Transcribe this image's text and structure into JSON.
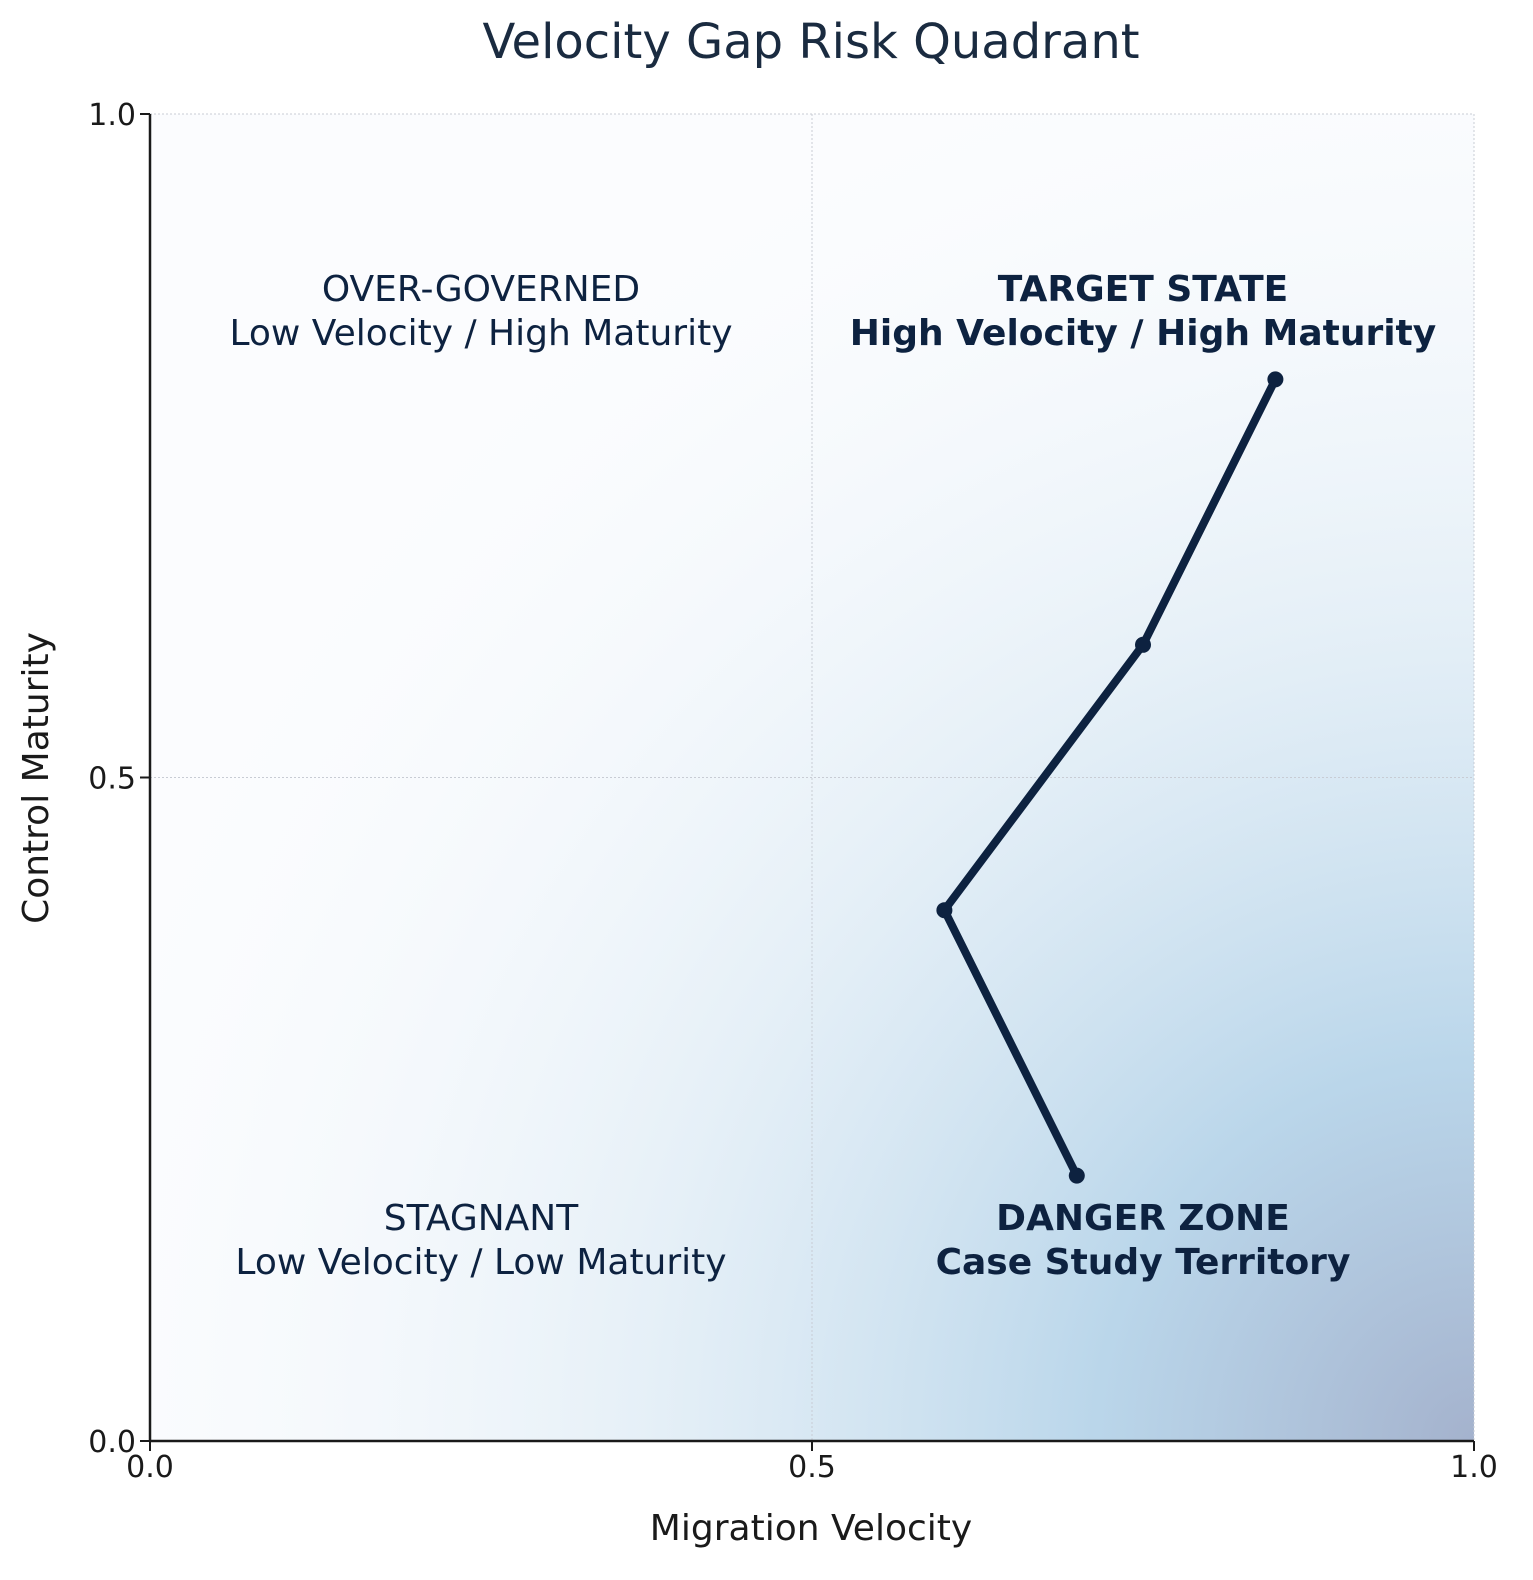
{
  "chart_data": {
    "type": "line",
    "title": "Velocity Gap Risk Quadrant",
    "xlabel": "Migration Velocity",
    "ylabel": "Control Maturity",
    "xlim": [
      0,
      1
    ],
    "ylim": [
      0,
      1
    ],
    "x_ticks": [
      {
        "value": 0,
        "label": "0.0"
      },
      {
        "value": 0.5,
        "label": "0.5"
      },
      {
        "value": 1,
        "label": "1.0"
      }
    ],
    "y_ticks": [
      {
        "value": 0,
        "label": "0.0"
      },
      {
        "value": 0.5,
        "label": "0.5"
      },
      {
        "value": 1,
        "label": "1.0"
      }
    ],
    "grid": true,
    "quadrant_dividers": {
      "x": 0.5,
      "y": 0.5
    },
    "background": "gradient increasing toward high velocity / low maturity",
    "series": [
      {
        "points": [
          {
            "x": 0.7,
            "y": 0.2
          },
          {
            "x": 0.6,
            "y": 0.4
          },
          {
            "x": 0.75,
            "y": 0.6
          },
          {
            "x": 0.85,
            "y": 0.8
          }
        ],
        "color": "#0d2240"
      }
    ],
    "annotations": [
      {
        "x": 0.25,
        "y": 0.85,
        "title": "OVER-GOVERNED",
        "subtitle": "Low Velocity / High Maturity",
        "bold": false
      },
      {
        "x": 0.75,
        "y": 0.85,
        "title": "TARGET STATE",
        "subtitle": "High Velocity / High Maturity",
        "bold": true
      },
      {
        "x": 0.25,
        "y": 0.15,
        "title": "STAGNANT",
        "subtitle": "Low Velocity / Low Maturity",
        "bold": false
      },
      {
        "x": 0.75,
        "y": 0.15,
        "title": "DANGER ZONE",
        "subtitle": "Case Study Territory",
        "bold": true
      }
    ]
  },
  "colors": {
    "text": "#1a1a1a",
    "annotation": "#0d2240",
    "line": "#0d2240",
    "gradient_light": "#fbfcff",
    "gradient_mid": "#c2dcec",
    "gradient_dark": "#a9b6d0"
  }
}
